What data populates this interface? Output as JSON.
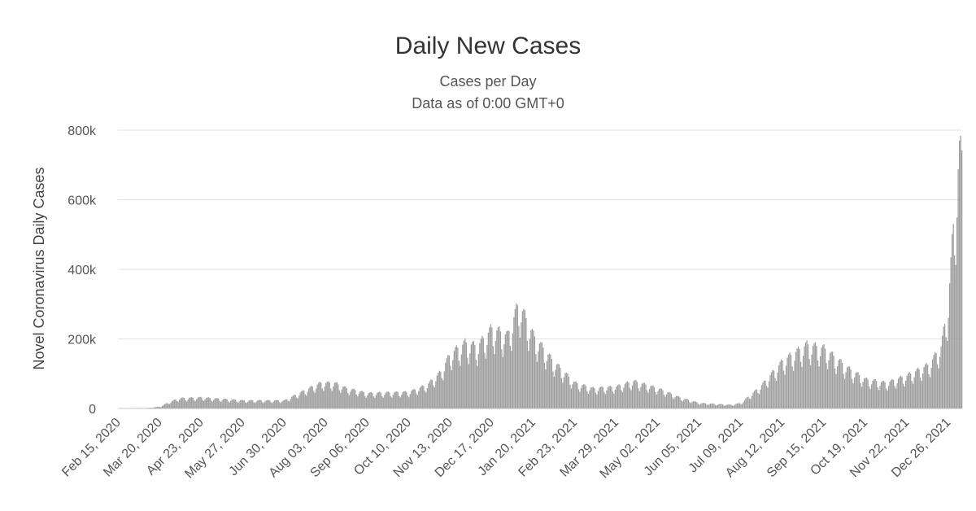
{
  "chart_data": {
    "type": "bar",
    "title": "Daily New Cases",
    "subtitle": "Cases per Day",
    "subtitle2": "Data as of 0:00 GMT+0",
    "ylabel": "Novel Coronavirus Daily Cases",
    "ylim": [
      0,
      800000
    ],
    "yticks": [
      {
        "value": 0,
        "label": "0"
      },
      {
        "value": 200000,
        "label": "200k"
      },
      {
        "value": 400000,
        "label": "400k"
      },
      {
        "value": 600000,
        "label": "600k"
      },
      {
        "value": 800000,
        "label": "800k"
      }
    ],
    "x_start": "2020-02-15",
    "x_end": "2022-01-06",
    "xticks": [
      "Feb 15, 2020",
      "Mar 20, 2020",
      "Apr 23, 2020",
      "May 27, 2020",
      "Jun 30, 2020",
      "Aug 03, 2020",
      "Sep 06, 2020",
      "Oct 10, 2020",
      "Nov 13, 2020",
      "Dec 17, 2020",
      "Jan 20, 2021",
      "Feb 23, 2021",
      "Mar 29, 2021",
      "May 02, 2021",
      "Jun 05, 2021",
      "Jul 09, 2021",
      "Aug 12, 2021",
      "Sep 15, 2021",
      "Oct 19, 2021",
      "Nov 22, 2021",
      "Dec 26, 2021"
    ],
    "grid": true,
    "bar_color": "#9e9e9e",
    "values_per_day_approx": [
      {
        "date": "2020-02-15",
        "value": 0
      },
      {
        "date": "2020-03-10",
        "value": 1000
      },
      {
        "date": "2020-03-20",
        "value": 5000
      },
      {
        "date": "2020-03-28",
        "value": 18000
      },
      {
        "date": "2020-04-05",
        "value": 28000
      },
      {
        "date": "2020-04-23",
        "value": 30000
      },
      {
        "date": "2020-05-27",
        "value": 22000
      },
      {
        "date": "2020-06-30",
        "value": 22000
      },
      {
        "date": "2020-07-20",
        "value": 55000
      },
      {
        "date": "2020-07-30",
        "value": 70000
      },
      {
        "date": "2020-08-10",
        "value": 70000
      },
      {
        "date": "2020-08-20",
        "value": 55000
      },
      {
        "date": "2020-09-06",
        "value": 42000
      },
      {
        "date": "2020-10-10",
        "value": 45000
      },
      {
        "date": "2020-10-25",
        "value": 65000
      },
      {
        "date": "2020-11-05",
        "value": 100000
      },
      {
        "date": "2020-11-13",
        "value": 150000
      },
      {
        "date": "2020-11-25",
        "value": 180000
      },
      {
        "date": "2020-12-05",
        "value": 170000
      },
      {
        "date": "2020-12-17",
        "value": 220000
      },
      {
        "date": "2020-12-30",
        "value": 200000
      },
      {
        "date": "2021-01-08",
        "value": 290000
      },
      {
        "date": "2021-01-20",
        "value": 200000
      },
      {
        "date": "2021-02-05",
        "value": 130000
      },
      {
        "date": "2021-02-23",
        "value": 70000
      },
      {
        "date": "2021-03-10",
        "value": 55000
      },
      {
        "date": "2021-03-29",
        "value": 60000
      },
      {
        "date": "2021-04-12",
        "value": 75000
      },
      {
        "date": "2021-05-02",
        "value": 55000
      },
      {
        "date": "2021-05-20",
        "value": 30000
      },
      {
        "date": "2021-06-05",
        "value": 15000
      },
      {
        "date": "2021-07-01",
        "value": 10000
      },
      {
        "date": "2021-07-09",
        "value": 15000
      },
      {
        "date": "2021-07-25",
        "value": 60000
      },
      {
        "date": "2021-08-12",
        "value": 130000
      },
      {
        "date": "2021-09-01",
        "value": 175000
      },
      {
        "date": "2021-09-15",
        "value": 165000
      },
      {
        "date": "2021-10-05",
        "value": 110000
      },
      {
        "date": "2021-10-19",
        "value": 80000
      },
      {
        "date": "2021-11-05",
        "value": 70000
      },
      {
        "date": "2021-11-22",
        "value": 90000
      },
      {
        "date": "2021-12-10",
        "value": 120000
      },
      {
        "date": "2021-12-20",
        "value": 170000
      },
      {
        "date": "2021-12-26",
        "value": 290000
      },
      {
        "date": "2021-12-30",
        "value": 500000
      },
      {
        "date": "2022-01-02",
        "value": 610000
      },
      {
        "date": "2022-01-04",
        "value": 700000
      }
    ]
  }
}
